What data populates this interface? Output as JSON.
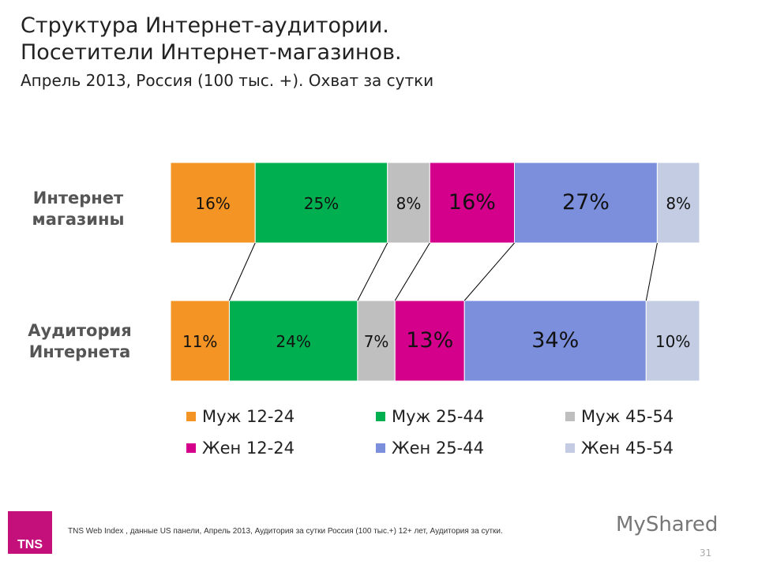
{
  "title": {
    "line1": "Структура Интернет-аудитории.",
    "line2": "Посетители Интернет-магазинов.",
    "subtitle": "Апрель 2013, Россия (100 тыс. +). Охват за сутки"
  },
  "chart_data": {
    "type": "bar",
    "stacked": true,
    "orientation": "horizontal",
    "categories": [
      "Интернет магазины",
      "Аудитория Интернета"
    ],
    "series": [
      {
        "name": "Муж 12-24",
        "color": "#f39425",
        "values": [
          16,
          11
        ]
      },
      {
        "name": "Муж 25-44",
        "color": "#00b050",
        "values": [
          25,
          24
        ]
      },
      {
        "name": "Муж 45-54",
        "color": "#bfbfbf",
        "values": [
          8,
          7
        ]
      },
      {
        "name": "Жен 12-24",
        "color": "#d4008c",
        "values": [
          16,
          13
        ]
      },
      {
        "name": "Жен 25-44",
        "color": "#7b8fdc",
        "values": [
          27,
          34
        ]
      },
      {
        "name": "Жен 45-54",
        "color": "#c3cce3",
        "values": [
          8,
          10
        ]
      }
    ],
    "labels": [
      [
        "16%",
        "25%",
        "8%",
        "16%",
        "27%",
        "8%"
      ],
      [
        "11%",
        "24%",
        "7%",
        "13%",
        "34%",
        "10%"
      ]
    ],
    "legend": "bottom"
  },
  "row_labels": {
    "shops_l1": "Интернет",
    "shops_l2": "магазины",
    "all_l1": "Аудитория",
    "all_l2": "Интернета"
  },
  "footer": {
    "logo": "TNS",
    "source": "TNS Web Index , данные US панели, Апрель 2013, Аудитория за сутки Россия (100 тыс.+) 12+ лет, Аудитория за сутки.",
    "watermark": "MyShared",
    "page": "31"
  }
}
